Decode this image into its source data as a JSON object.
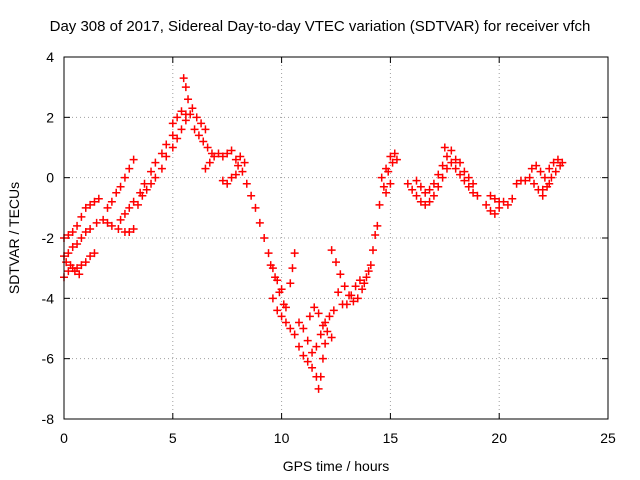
{
  "chart_data": {
    "type": "scatter",
    "title": "Day 308 of 2017, Sidereal Day-to-day VTEC variation (SDTVAR) for receiver vfch",
    "xlabel": "GPS time / hours",
    "ylabel": "SDTVAR / TECUs",
    "xlim": [
      0,
      25
    ],
    "ylim": [
      -8,
      4
    ],
    "xticks": [
      0,
      5,
      10,
      15,
      20,
      25
    ],
    "yticks": [
      -8,
      -6,
      -4,
      -2,
      0,
      2,
      4
    ],
    "grid": true,
    "marker": "plus",
    "color": "#ff0000",
    "series": [
      {
        "points": [
          [
            0.0,
            -2.0
          ],
          [
            0.2,
            -1.9
          ],
          [
            0.4,
            -1.8
          ],
          [
            0.6,
            -1.6
          ],
          [
            0.8,
            -1.3
          ],
          [
            1.0,
            -1.0
          ],
          [
            1.2,
            -0.9
          ],
          [
            1.4,
            -0.8
          ],
          [
            1.6,
            -0.7
          ],
          [
            0.0,
            -2.6
          ],
          [
            0.2,
            -2.5
          ],
          [
            0.4,
            -2.3
          ],
          [
            0.6,
            -2.2
          ],
          [
            0.8,
            -2.0
          ],
          [
            1.0,
            -1.8
          ],
          [
            1.2,
            -1.7
          ],
          [
            1.5,
            -1.5
          ],
          [
            1.8,
            -1.4
          ],
          [
            2.0,
            -1.5
          ],
          [
            2.2,
            -1.6
          ],
          [
            2.5,
            -1.7
          ],
          [
            2.8,
            -1.8
          ],
          [
            3.0,
            -1.8
          ],
          [
            3.2,
            -1.7
          ],
          [
            0.0,
            -3.3
          ],
          [
            0.2,
            -3.1
          ],
          [
            0.4,
            -3.0
          ],
          [
            0.6,
            -3.0
          ],
          [
            0.8,
            -2.9
          ],
          [
            1.0,
            -2.8
          ],
          [
            1.2,
            -2.6
          ],
          [
            1.4,
            -2.5
          ],
          [
            0.1,
            -2.8
          ],
          [
            0.3,
            -2.9
          ],
          [
            0.5,
            -3.1
          ],
          [
            0.7,
            -3.2
          ],
          [
            2.0,
            -1.0
          ],
          [
            2.2,
            -0.8
          ],
          [
            2.4,
            -0.5
          ],
          [
            2.6,
            -0.3
          ],
          [
            2.8,
            0.0
          ],
          [
            3.0,
            0.3
          ],
          [
            3.2,
            0.6
          ],
          [
            2.6,
            -1.4
          ],
          [
            2.8,
            -1.2
          ],
          [
            3.0,
            -1.0
          ],
          [
            3.2,
            -0.8
          ],
          [
            3.5,
            -0.5
          ],
          [
            3.7,
            -0.2
          ],
          [
            4.0,
            0.2
          ],
          [
            4.2,
            0.5
          ],
          [
            4.5,
            0.8
          ],
          [
            4.7,
            1.1
          ],
          [
            5.0,
            1.4
          ],
          [
            3.4,
            -0.9
          ],
          [
            3.6,
            -0.6
          ],
          [
            3.8,
            -0.4
          ],
          [
            4.0,
            -0.2
          ],
          [
            4.2,
            0.0
          ],
          [
            4.5,
            0.3
          ],
          [
            4.7,
            0.7
          ],
          [
            5.0,
            1.0
          ],
          [
            5.2,
            1.3
          ],
          [
            5.4,
            1.6
          ],
          [
            5.6,
            1.9
          ],
          [
            5.0,
            1.8
          ],
          [
            5.2,
            2.0
          ],
          [
            5.4,
            2.2
          ],
          [
            5.6,
            2.1
          ],
          [
            5.8,
            2.1
          ],
          [
            5.5,
            3.3
          ],
          [
            5.6,
            3.0
          ],
          [
            5.7,
            2.6
          ],
          [
            5.9,
            2.3
          ],
          [
            6.1,
            2.0
          ],
          [
            6.3,
            1.8
          ],
          [
            6.5,
            1.6
          ],
          [
            6.0,
            1.6
          ],
          [
            6.2,
            1.4
          ],
          [
            6.4,
            1.2
          ],
          [
            6.6,
            1.0
          ],
          [
            6.8,
            0.8
          ],
          [
            6.5,
            0.3
          ],
          [
            6.7,
            0.5
          ],
          [
            6.9,
            0.7
          ],
          [
            7.1,
            0.8
          ],
          [
            7.3,
            0.7
          ],
          [
            7.5,
            0.8
          ],
          [
            7.7,
            0.9
          ],
          [
            7.9,
            0.6
          ],
          [
            8.0,
            0.4
          ],
          [
            8.1,
            0.7
          ],
          [
            8.3,
            0.5
          ],
          [
            7.3,
            -0.1
          ],
          [
            7.5,
            -0.2
          ],
          [
            7.7,
            0.0
          ],
          [
            7.9,
            0.1
          ],
          [
            8.2,
            0.2
          ],
          [
            8.4,
            -0.2
          ],
          [
            8.6,
            -0.6
          ],
          [
            8.8,
            -1.0
          ],
          [
            9.0,
            -1.5
          ],
          [
            9.2,
            -2.0
          ],
          [
            9.4,
            -2.5
          ],
          [
            9.6,
            -3.0
          ],
          [
            9.8,
            -3.4
          ],
          [
            10.0,
            -3.7
          ],
          [
            9.5,
            -2.9
          ],
          [
            9.7,
            -3.3
          ],
          [
            9.9,
            -3.8
          ],
          [
            10.1,
            -4.2
          ],
          [
            9.6,
            -4.0
          ],
          [
            9.8,
            -4.4
          ],
          [
            10.0,
            -4.6
          ],
          [
            10.2,
            -4.3
          ],
          [
            10.4,
            -3.5
          ],
          [
            10.5,
            -3.0
          ],
          [
            10.6,
            -2.5
          ],
          [
            10.2,
            -4.8
          ],
          [
            10.4,
            -5.0
          ],
          [
            10.6,
            -5.2
          ],
          [
            10.8,
            -4.8
          ],
          [
            11.0,
            -5.0
          ],
          [
            11.2,
            -5.4
          ],
          [
            11.4,
            -5.8
          ],
          [
            11.6,
            -5.6
          ],
          [
            11.8,
            -5.2
          ],
          [
            12.0,
            -4.8
          ],
          [
            12.2,
            -4.6
          ],
          [
            12.4,
            -4.4
          ],
          [
            10.8,
            -5.6
          ],
          [
            11.0,
            -5.9
          ],
          [
            11.2,
            -6.1
          ],
          [
            11.4,
            -6.3
          ],
          [
            11.6,
            -6.6
          ],
          [
            11.7,
            -7.0
          ],
          [
            11.8,
            -6.6
          ],
          [
            11.9,
            -6.0
          ],
          [
            12.0,
            -5.5
          ],
          [
            11.3,
            -4.6
          ],
          [
            11.5,
            -4.3
          ],
          [
            11.7,
            -4.5
          ],
          [
            11.9,
            -4.9
          ],
          [
            12.1,
            -5.1
          ],
          [
            12.3,
            -5.3
          ],
          [
            12.3,
            -2.4
          ],
          [
            12.5,
            -2.8
          ],
          [
            12.7,
            -3.2
          ],
          [
            12.9,
            -3.6
          ],
          [
            13.1,
            -3.9
          ],
          [
            13.3,
            -4.1
          ],
          [
            13.5,
            -4.0
          ],
          [
            13.7,
            -3.7
          ],
          [
            13.9,
            -3.3
          ],
          [
            14.1,
            -2.9
          ],
          [
            14.2,
            -2.4
          ],
          [
            14.3,
            -1.9
          ],
          [
            14.4,
            -1.6
          ],
          [
            12.6,
            -3.8
          ],
          [
            12.8,
            -4.2
          ],
          [
            13.0,
            -4.2
          ],
          [
            13.2,
            -3.9
          ],
          [
            13.4,
            -3.6
          ],
          [
            13.6,
            -3.4
          ],
          [
            13.8,
            -3.5
          ],
          [
            14.0,
            -3.1
          ],
          [
            14.5,
            -0.9
          ],
          [
            14.7,
            -0.3
          ],
          [
            14.9,
            0.2
          ],
          [
            15.1,
            0.5
          ],
          [
            15.3,
            0.6
          ],
          [
            14.6,
            0.0
          ],
          [
            14.8,
            0.3
          ],
          [
            15.0,
            0.7
          ],
          [
            15.2,
            0.8
          ],
          [
            14.8,
            -0.5
          ],
          [
            15.0,
            -0.2
          ],
          [
            15.8,
            -0.2
          ],
          [
            16.0,
            -0.4
          ],
          [
            16.2,
            -0.6
          ],
          [
            16.4,
            -0.8
          ],
          [
            16.6,
            -0.9
          ],
          [
            16.8,
            -0.8
          ],
          [
            17.0,
            -0.6
          ],
          [
            17.2,
            -0.3
          ],
          [
            17.4,
            0.0
          ],
          [
            17.6,
            0.3
          ],
          [
            17.8,
            0.5
          ],
          [
            18.0,
            0.6
          ],
          [
            16.2,
            -0.1
          ],
          [
            16.4,
            -0.3
          ],
          [
            16.6,
            -0.5
          ],
          [
            16.8,
            -0.4
          ],
          [
            17.0,
            -0.2
          ],
          [
            17.2,
            0.1
          ],
          [
            17.4,
            0.4
          ],
          [
            17.6,
            0.7
          ],
          [
            17.8,
            0.9
          ],
          [
            17.5,
            1.0
          ],
          [
            18.0,
            0.3
          ],
          [
            18.2,
            0.1
          ],
          [
            18.4,
            -0.1
          ],
          [
            18.6,
            -0.3
          ],
          [
            18.8,
            -0.5
          ],
          [
            19.0,
            -0.6
          ],
          [
            18.2,
            0.5
          ],
          [
            18.4,
            0.2
          ],
          [
            18.6,
            0.0
          ],
          [
            18.8,
            -0.2
          ],
          [
            19.4,
            -0.9
          ],
          [
            19.6,
            -1.1
          ],
          [
            19.8,
            -1.2
          ],
          [
            20.0,
            -1.0
          ],
          [
            20.2,
            -0.8
          ],
          [
            20.4,
            -0.9
          ],
          [
            20.6,
            -0.7
          ],
          [
            19.6,
            -0.6
          ],
          [
            19.8,
            -0.7
          ],
          [
            20.0,
            -0.8
          ],
          [
            20.8,
            -0.2
          ],
          [
            21.0,
            -0.1
          ],
          [
            21.2,
            -0.1
          ],
          [
            21.4,
            0.0
          ],
          [
            21.6,
            -0.2
          ],
          [
            21.8,
            -0.4
          ],
          [
            22.0,
            -0.6
          ],
          [
            22.2,
            -0.3
          ],
          [
            22.4,
            0.0
          ],
          [
            22.6,
            0.2
          ],
          [
            22.8,
            0.4
          ],
          [
            21.5,
            0.3
          ],
          [
            21.7,
            0.4
          ],
          [
            21.9,
            0.2
          ],
          [
            22.1,
            0.0
          ],
          [
            22.3,
            0.3
          ],
          [
            22.5,
            0.5
          ],
          [
            22.7,
            0.6
          ],
          [
            22.9,
            0.5
          ],
          [
            22.0,
            -0.4
          ],
          [
            22.3,
            -0.2
          ]
        ]
      }
    ]
  }
}
